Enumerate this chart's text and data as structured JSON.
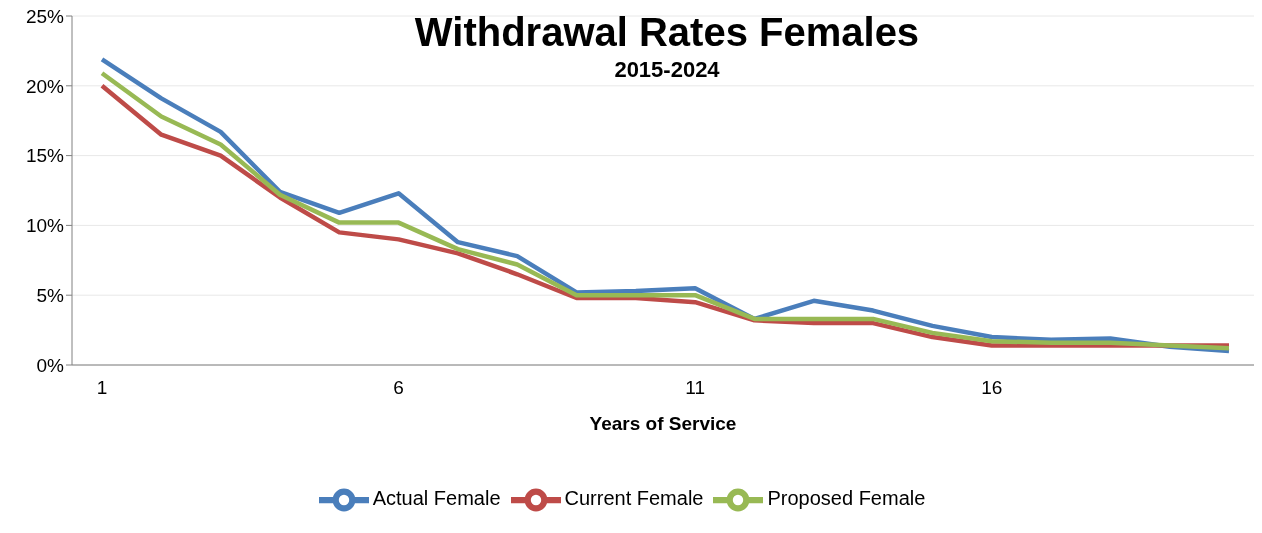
{
  "chart_data": {
    "type": "line",
    "title": "Withdrawal Rates Females",
    "subtitle": "2015-2024",
    "xlabel": "Years of Service",
    "categories": [
      "1",
      null,
      null,
      null,
      null,
      "6",
      null,
      null,
      null,
      null,
      "11",
      null,
      null,
      null,
      null,
      "16",
      null,
      null,
      null,
      null
    ],
    "series": [
      {
        "name": "Actual Female",
        "color": "#4a7ebb",
        "values": [
          21.9,
          19.1,
          16.7,
          12.4,
          10.9,
          12.3,
          8.8,
          7.8,
          5.2,
          5.3,
          5.5,
          3.3,
          4.6,
          3.9,
          2.8,
          2.0,
          1.8,
          1.9,
          1.3,
          1.0
        ]
      },
      {
        "name": "Current Female",
        "color": "#be4b48",
        "values": [
          20.0,
          16.5,
          15.0,
          12.0,
          9.5,
          9.0,
          8.0,
          6.5,
          4.8,
          4.8,
          4.5,
          3.2,
          3.0,
          3.0,
          2.0,
          1.4,
          1.4,
          1.4,
          1.4,
          1.4
        ]
      },
      {
        "name": "Proposed Female",
        "color": "#98b954",
        "values": [
          20.9,
          17.8,
          15.8,
          12.2,
          10.2,
          10.2,
          8.3,
          7.2,
          5.0,
          5.0,
          5.0,
          3.3,
          3.3,
          3.3,
          2.3,
          1.7,
          1.6,
          1.6,
          1.4,
          1.2
        ]
      }
    ],
    "ylim": [
      0,
      25
    ],
    "yticks": [
      {
        "value": 0,
        "label": "0%"
      },
      {
        "value": 5,
        "label": "5%"
      },
      {
        "value": 10,
        "label": "10%"
      },
      {
        "value": 15,
        "label": "15%"
      },
      {
        "value": 20,
        "label": "20%"
      },
      {
        "value": 25,
        "label": "25%"
      }
    ],
    "grid": "y",
    "legend": "bottom",
    "marker": "none",
    "line_style": "solid"
  }
}
